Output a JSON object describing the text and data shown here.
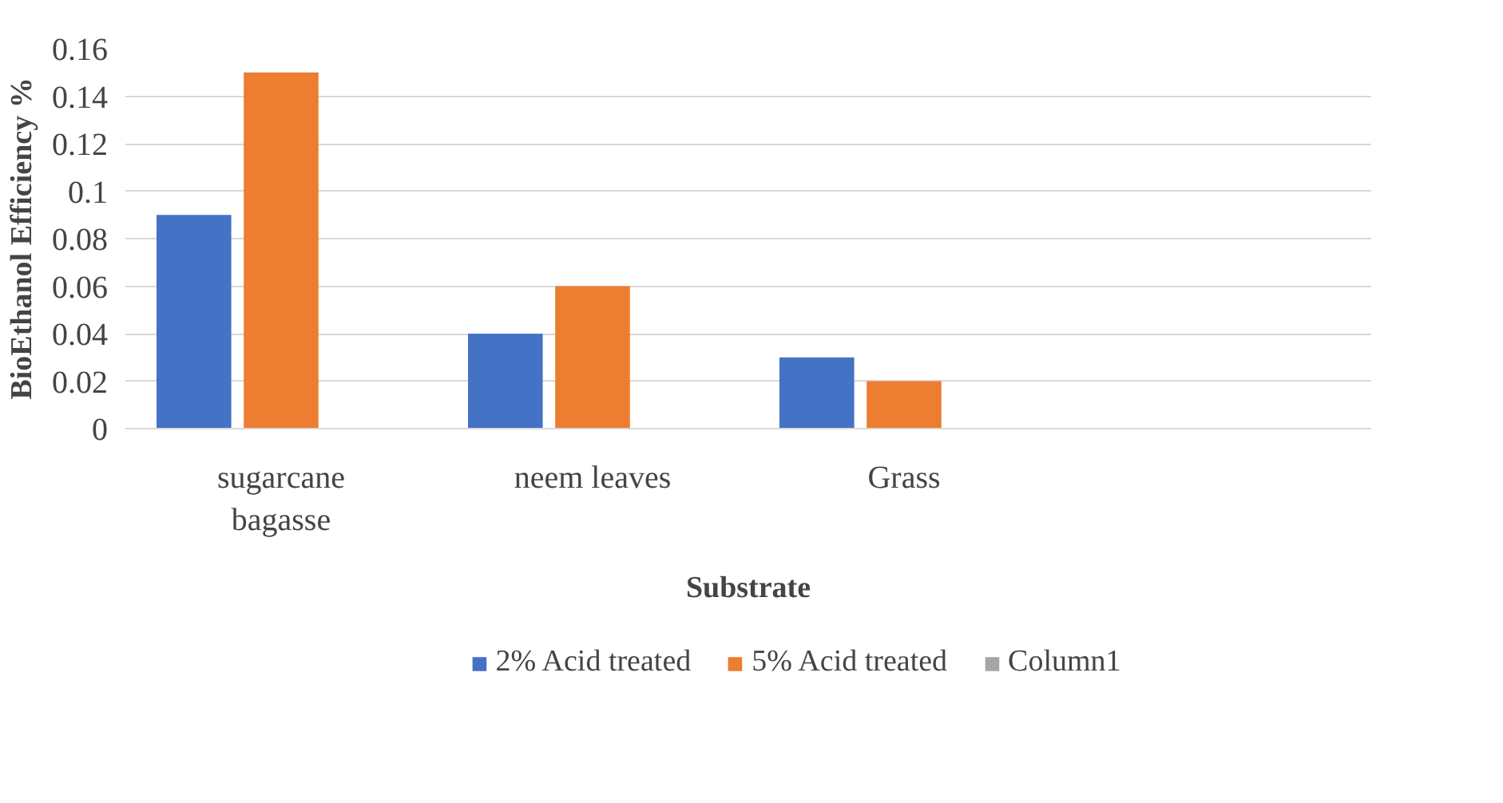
{
  "chart_data": {
    "type": "bar",
    "xlabel": "Substrate",
    "ylabel": "BioEthanol Efficiency %",
    "categories": [
      "sugarcane bagasse",
      "neem leaves",
      "Grass",
      null
    ],
    "series": [
      {
        "name": "2% Acid treated",
        "color": "#4472c4",
        "values": [
          0.09,
          0.04,
          0.03,
          null
        ]
      },
      {
        "name": "5% Acid treated",
        "color": "#ed7d31",
        "values": [
          0.15,
          0.06,
          0.02,
          null
        ]
      },
      {
        "name": "Column1",
        "color": "#a5a5a5",
        "values": [
          null,
          null,
          null,
          null
        ]
      }
    ],
    "ylim": [
      0,
      0.16
    ],
    "yticks": [
      0,
      0.02,
      0.04,
      0.06,
      0.08,
      0.1,
      0.12,
      0.14,
      0.16
    ],
    "grid": "y",
    "legend": "bottom"
  }
}
